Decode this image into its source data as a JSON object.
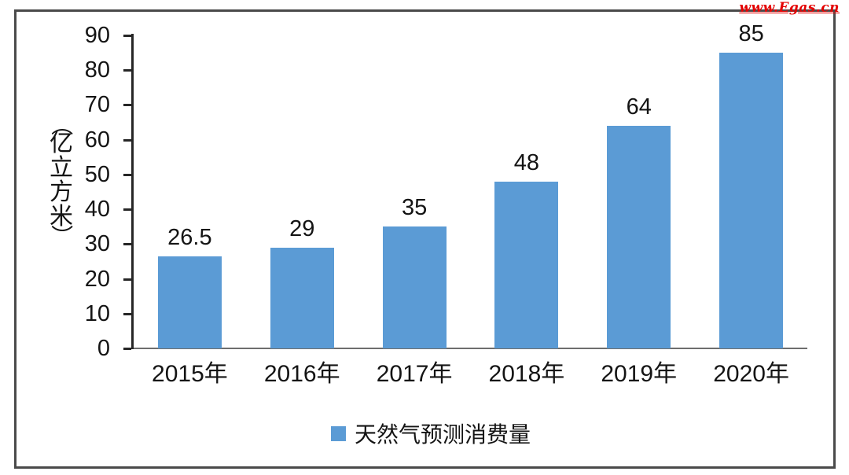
{
  "watermark": {
    "text": "www.Egas.cn",
    "color": "#e40000"
  },
  "chart_data": {
    "type": "bar",
    "title": "",
    "categories": [
      "2015年",
      "2016年",
      "2017年",
      "2018年",
      "2019年",
      "2020年"
    ],
    "values": [
      26.5,
      29,
      35,
      48,
      64,
      85
    ],
    "value_labels": [
      "26.5",
      "29",
      "35",
      "48",
      "64",
      "85"
    ],
    "xlabel": "",
    "ylabel": "（亿立方米）",
    "ylim": [
      0,
      90
    ],
    "yticks": [
      0,
      10,
      20,
      30,
      40,
      50,
      60,
      70,
      80,
      90
    ],
    "grid": false,
    "bar_color": "#5B9BD5",
    "axis_color": "#262626",
    "legend": {
      "position": "bottom",
      "entries": [
        {
          "label": "天然气预测消费量",
          "color": "#5B9BD5"
        }
      ]
    }
  }
}
